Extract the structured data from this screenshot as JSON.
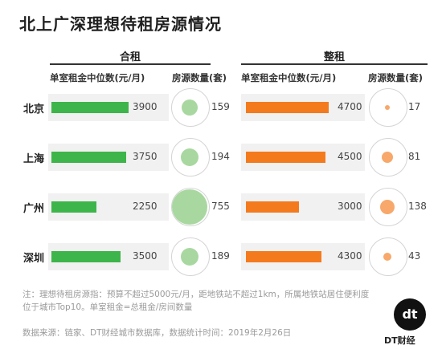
{
  "title": "北上广深理想待租房源情况",
  "sections": {
    "shared": {
      "title": "合租",
      "rent_header": "单室租金中位数(元/月)",
      "count_header": "房源数量(套)"
    },
    "whole": {
      "title": "整租",
      "rent_header": "单室租金中位数(元/月)",
      "count_header": "房源数量(套)"
    }
  },
  "colors": {
    "shared_bar": "#3db54a",
    "shared_dot": "#a8d8a0",
    "whole_bar": "#f47a1e",
    "whole_dot": "#f7a86a"
  },
  "chart_data": {
    "type": "bar",
    "categories": [
      "北京",
      "上海",
      "广州",
      "深圳"
    ],
    "series": [
      {
        "name": "合租 单室租金中位数(元/月)",
        "values": [
          3900,
          3750,
          2250,
          3500
        ]
      },
      {
        "name": "合租 房源数量(套)",
        "values": [
          159,
          194,
          755,
          189
        ]
      },
      {
        "name": "整租 单室租金中位数(元/月)",
        "values": [
          4700,
          4500,
          3000,
          4300
        ]
      },
      {
        "name": "整租 房源数量(套)",
        "values": [
          17,
          81,
          138,
          43
        ]
      }
    ]
  },
  "footer": {
    "note": "注：理想待租房源指：预算不超过5000元/月，距地铁站不超过1km，所属地铁站居住便利度位于城市Top10。单室租金=总租金/房间数量",
    "source": "数据来源：链家、DT财经城市数据库，数据统计时间：2019年2月26日",
    "logo_mark": "dt",
    "logo_text": "DT财经"
  }
}
